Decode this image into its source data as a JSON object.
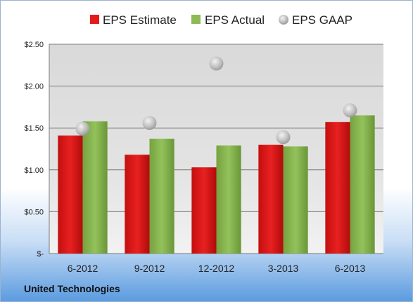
{
  "chart_data": {
    "type": "bar",
    "categories": [
      "6-2012",
      "9-2012",
      "12-2012",
      "3-2013",
      "6-2013"
    ],
    "series": [
      {
        "name": "EPS Estimate",
        "kind": "bar",
        "color": "#e31b1b",
        "values": [
          1.41,
          1.18,
          1.03,
          1.3,
          1.57
        ]
      },
      {
        "name": "EPS Actual",
        "kind": "bar",
        "color": "#8cba54",
        "values": [
          1.58,
          1.37,
          1.29,
          1.28,
          1.65
        ]
      },
      {
        "name": "EPS GAAP",
        "kind": "marker",
        "color": "#c8c8c8",
        "values": [
          1.49,
          1.56,
          2.27,
          1.39,
          1.71
        ]
      }
    ],
    "yticks": [
      {
        "value": 0,
        "label": "$-"
      },
      {
        "value": 0.5,
        "label": "$0.50"
      },
      {
        "value": 1.0,
        "label": "$1.00"
      },
      {
        "value": 1.5,
        "label": "$1.50"
      },
      {
        "value": 2.0,
        "label": "$2.00"
      },
      {
        "value": 2.5,
        "label": "$2.50"
      }
    ],
    "ylim": [
      0,
      2.5
    ],
    "grid": true,
    "legend_position": "top",
    "footer": "United Technologies"
  }
}
